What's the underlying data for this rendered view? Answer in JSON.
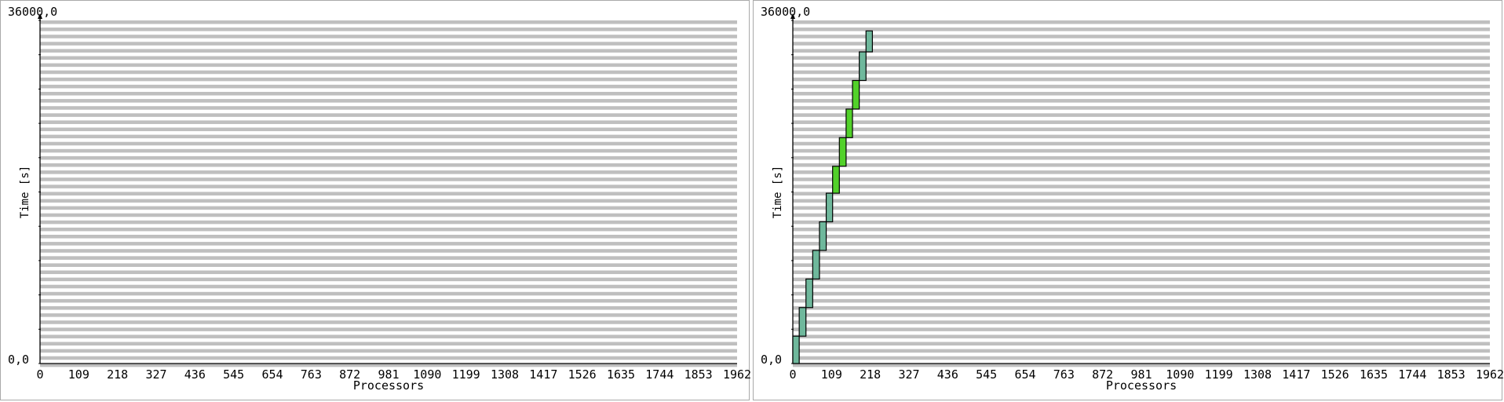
{
  "chart_data": [
    {
      "type": "gantt",
      "ymax_label": "36000,0",
      "ymin_label": "0,0",
      "ylabel": "Time [s]",
      "xlabel": "Processors",
      "x_ticks": [
        "0",
        "109",
        "218",
        "327",
        "436",
        "545",
        "654",
        "763",
        "872",
        "981",
        "1090",
        "1199",
        "1308",
        "1417",
        "1526",
        "1635",
        "1744",
        "1853",
        "1962"
      ],
      "xlim": [
        0,
        1962
      ],
      "ylim": [
        0,
        36000
      ],
      "colors": {
        "stripe": "#bfbfbf",
        "axis": "#000000"
      },
      "jobs": []
    },
    {
      "type": "gantt",
      "ymax_label": "36000,0",
      "ymin_label": "0,0",
      "ylabel": "Time [s]",
      "xlabel": "Processors",
      "x_ticks": [
        "0",
        "109",
        "218",
        "327",
        "436",
        "545",
        "654",
        "763",
        "872",
        "981",
        "1090",
        "1199",
        "1308",
        "1417",
        "1526",
        "1635",
        "1744",
        "1853",
        "1962"
      ],
      "xlim": [
        0,
        1962
      ],
      "ylim": [
        0,
        36000
      ],
      "colors": {
        "stripe": "#bfbfbf",
        "axis": "#000000",
        "job_teal": "#6fb89c",
        "job_green": "#52d12a"
      },
      "jobs": [
        {
          "x0": 0,
          "x1": 18,
          "t0": 0,
          "t1": 2870,
          "color": "#6fb89c"
        },
        {
          "x0": 18,
          "x1": 37,
          "t0": 2870,
          "t1": 5870,
          "color": "#6fb89c"
        },
        {
          "x0": 37,
          "x1": 56,
          "t0": 5870,
          "t1": 8870,
          "color": "#6fb89c"
        },
        {
          "x0": 56,
          "x1": 75,
          "t0": 8870,
          "t1": 11870,
          "color": "#6fb89c"
        },
        {
          "x0": 75,
          "x1": 94,
          "t0": 11870,
          "t1": 14870,
          "color": "#6fb89c"
        },
        {
          "x0": 94,
          "x1": 112,
          "t0": 14870,
          "t1": 17870,
          "color": "#6fb89c"
        },
        {
          "x0": 112,
          "x1": 131,
          "t0": 17870,
          "t1": 20700,
          "color": "#52d12a"
        },
        {
          "x0": 131,
          "x1": 150,
          "t0": 20700,
          "t1": 23700,
          "color": "#52d12a"
        },
        {
          "x0": 150,
          "x1": 168,
          "t0": 23700,
          "t1": 26700,
          "color": "#52d12a"
        },
        {
          "x0": 168,
          "x1": 187,
          "t0": 26700,
          "t1": 29700,
          "color": "#52d12a"
        },
        {
          "x0": 187,
          "x1": 206,
          "t0": 29700,
          "t1": 32700,
          "color": "#6fb89c"
        },
        {
          "x0": 206,
          "x1": 224,
          "t0": 32700,
          "t1": 34900,
          "color": "#6fb89c"
        }
      ]
    }
  ]
}
